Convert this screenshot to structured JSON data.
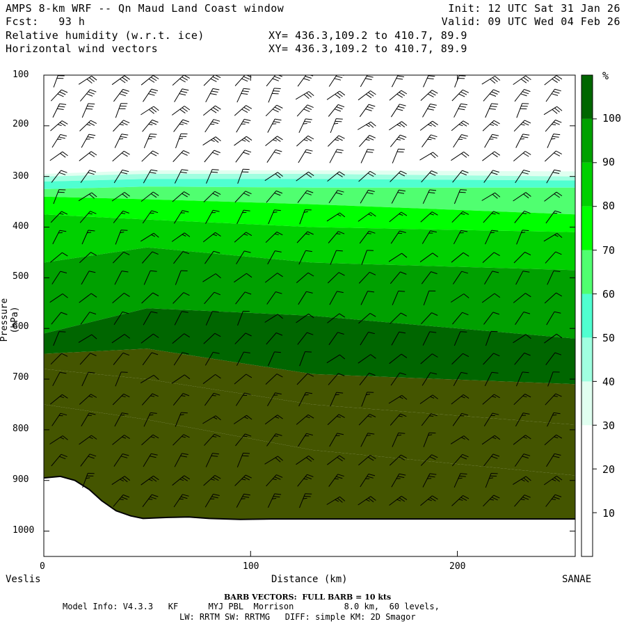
{
  "header": {
    "title": "AMPS 8-km WRF -- Qn Maud Land Coast window",
    "forecast": "Fcst:   93 h",
    "field1": "Relative humidity (w.r.t. ice)",
    "field2": "Horizontal wind vectors",
    "xy1": "XY= 436.3,109.2 to 410.7, 89.9",
    "xy2": "XY= 436.3,109.2 to 410.7, 89.9",
    "init": "Init: 12 UTC Sat 31 Jan 26",
    "valid": "Valid: 09 UTC Wed 04 Feb 26"
  },
  "footer": {
    "barb_note": "BARB VECTORS:  FULL BARB = 10 kts",
    "model_info": "Model Info: V4.3.3   KF      MYJ PBL  Morrison          8.0 km,  60 levels,",
    "physics": "LW: RRTM SW: RRTMG   DIFF: simple KM: 2D Smagor"
  },
  "chart_data": {
    "type": "heatmap",
    "title": "Relative humidity (w.r.t. ice)",
    "xlabel": "Distance (km)",
    "ylabel": "Pressure (hPa)",
    "x_start_label": "Veslis",
    "x_end_label": "SANAE",
    "xlim": [
      0,
      257
    ],
    "ylim": [
      1050,
      100
    ],
    "x_ticks": [
      "0",
      "100",
      "200"
    ],
    "x_tick_values": [
      0,
      100,
      200
    ],
    "y_ticks": [
      "100",
      "200",
      "300",
      "400",
      "500",
      "600",
      "700",
      "800",
      "900",
      "1000"
    ],
    "y_tick_values": [
      100,
      200,
      300,
      400,
      500,
      600,
      700,
      800,
      900,
      1000
    ],
    "colorbar": {
      "unit": "%",
      "labels": [
        "10",
        "20",
        "30",
        "40",
        "50",
        "60",
        "70",
        "80",
        "90",
        "100"
      ],
      "levels": [
        0,
        10,
        20,
        30,
        40,
        50,
        60,
        70,
        80,
        90,
        100,
        110
      ],
      "colors": [
        "#ffffff",
        "#ffffff",
        "#ffffff",
        "#e0fff0",
        "#a0ffe0",
        "#50ffd0",
        "#50ff70",
        "#00ff00",
        "#00d000",
        "#00a000",
        "#006600",
        "#445500"
      ]
    },
    "terrain_hpa": {
      "x": [
        0,
        8,
        15,
        22,
        28,
        35,
        42,
        48,
        60,
        70,
        80,
        95,
        110,
        150,
        200,
        257
      ],
      "p": [
        895,
        892,
        900,
        918,
        940,
        960,
        970,
        975,
        973,
        972,
        975,
        977,
        976,
        976,
        976,
        976
      ]
    },
    "rh_profiles": [
      {
        "x": 0,
        "boundaries_hpa": [
          290,
          295,
          300,
          310,
          325,
          340,
          375,
          470,
          610,
          650,
          680,
          750
        ]
      },
      {
        "x": 50,
        "boundaries_hpa": [
          283,
          288,
          295,
          305,
          320,
          345,
          385,
          440,
          560,
          640,
          700,
          780
        ]
      },
      {
        "x": 130,
        "boundaries_hpa": [
          283,
          288,
          295,
          305,
          322,
          355,
          400,
          470,
          575,
          690,
          750,
          840
        ]
      },
      {
        "x": 257,
        "boundaries_hpa": [
          283,
          290,
          300,
          308,
          322,
          375,
          410,
          485,
          620,
          710,
          790,
          890
        ]
      }
    ],
    "barbs": {
      "x_columns_km": [
        6,
        20,
        36,
        50,
        65,
        80,
        95,
        110,
        125,
        140,
        155,
        170,
        185,
        200,
        215,
        230,
        245
      ],
      "levels_hpa": [
        110,
        140,
        170,
        200,
        230,
        260,
        300,
        340,
        380,
        420,
        460,
        500,
        540,
        580,
        620,
        660,
        700,
        740,
        780,
        820,
        860,
        900,
        940,
        970
      ],
      "speed_kts_by_level": [
        30,
        30,
        30,
        25,
        25,
        20,
        20,
        20,
        15,
        15,
        10,
        10,
        10,
        10,
        10,
        10,
        10,
        15,
        15,
        15,
        20,
        25,
        25,
        30
      ]
    }
  }
}
